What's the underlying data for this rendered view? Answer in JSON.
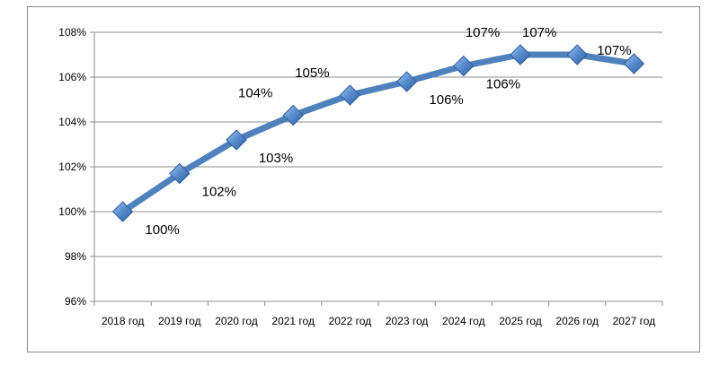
{
  "chart_data": {
    "type": "line",
    "categories": [
      "2018 год",
      "2019 год",
      "2020 год",
      "2021 год",
      "2022 год",
      "2023 год",
      "2024 год",
      "2025 год",
      "2026 год",
      "2027 год"
    ],
    "series": [
      {
        "values": [
          100,
          101.7,
          103.2,
          104.3,
          105.2,
          105.8,
          106.5,
          107.0,
          107.0,
          106.6
        ],
        "labels": [
          "100%",
          "102%",
          "103%",
          "104%",
          "105%",
          "106%",
          "106%",
          "107%",
          "107%",
          "107%"
        ],
        "color": "#4f81bd"
      }
    ],
    "yticks": [
      "96%",
      "98%",
      "100%",
      "102%",
      "104%",
      "106%",
      "108%"
    ],
    "ylim": [
      96,
      108
    ],
    "grid": true,
    "legend": "none",
    "marker": "diamond",
    "marker_color": "#4f81bd"
  }
}
